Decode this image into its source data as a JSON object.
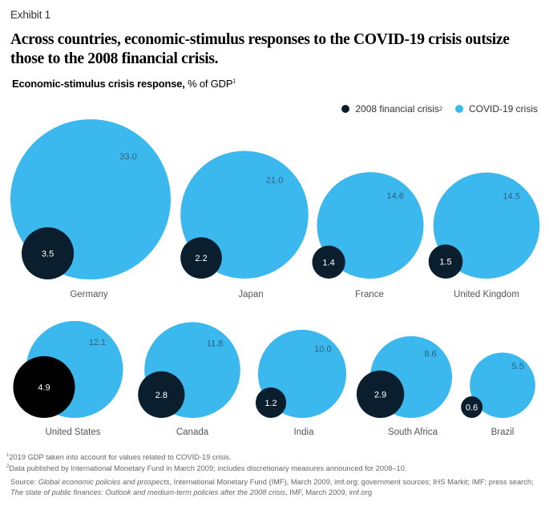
{
  "exhibit_label": "Exhibit 1",
  "title": "Across countries, economic-stimulus responses to the COVID-19 crisis outsize those to the 2008 financial crisis.",
  "subtitle_bold": "Economic-stimulus crisis response,",
  "subtitle_rest": " % of GDP",
  "subtitle_sup": "1",
  "legend": [
    {
      "label": "2008 financial crisis",
      "sup": "2",
      "color": "#0b1e2d"
    },
    {
      "label": "COVID-19 crisis",
      "sup": "",
      "color": "#3bb8ee"
    }
  ],
  "colors": {
    "covid": "#3bb8ee",
    "crisis2008": "#0b1e2d",
    "crisis2008_highlight": "#000000",
    "covid_label": "#2e5f7c",
    "crisis_label": "#ffffff",
    "country_label": "#555555"
  },
  "chart_data": {
    "type": "bubble",
    "title": "Across countries, economic-stimulus responses to the COVID-19 crisis outsize those to the 2008 financial crisis.",
    "unit": "% of GDP",
    "series": [
      {
        "name": "2008 financial crisis",
        "values": [
          3.5,
          2.2,
          1.4,
          1.5,
          4.9,
          2.8,
          1.2,
          2.9,
          0.6
        ]
      },
      {
        "name": "COVID-19 crisis",
        "values": [
          33.0,
          21.0,
          14.6,
          14.5,
          12.1,
          11.8,
          10.0,
          8.6,
          5.5
        ]
      }
    ],
    "categories": [
      "Germany",
      "Japan",
      "France",
      "United Kingdom",
      "United States",
      "Canada",
      "India",
      "South Africa",
      "Brazil"
    ],
    "labels_covid": [
      "33.0",
      "21.0",
      "14.6",
      "14.5",
      "12.1",
      "11.8",
      "10.0",
      "8.6",
      "5.5"
    ],
    "labels_2008": [
      "3.5",
      "2.2",
      "1.4",
      "1.5",
      "4.9",
      "2.8",
      "1.2",
      "2.9",
      "0.6"
    ],
    "legend_position": "top-right"
  },
  "footnotes": [
    {
      "sup": "1",
      "text": "2019 GDP taken into account for values related to COVID-19 crisis."
    },
    {
      "sup": "2",
      "text": "Data published by International Monetary Fund in March 2009; includes discretionary measures announced for 2008–10."
    }
  ],
  "source": {
    "prefix": "Source: ",
    "italic1": "Global economic policies and prospects",
    "mid": ", International Monetary Fund (IMF), March 2009, imf.org; government sources; IHS Markit; IMF; press search; ",
    "italic2": "The state of public finances: Outlook and medium-term policies after the 2008 crisis",
    "suffix": ", IMF, March 2009, imf.org"
  }
}
